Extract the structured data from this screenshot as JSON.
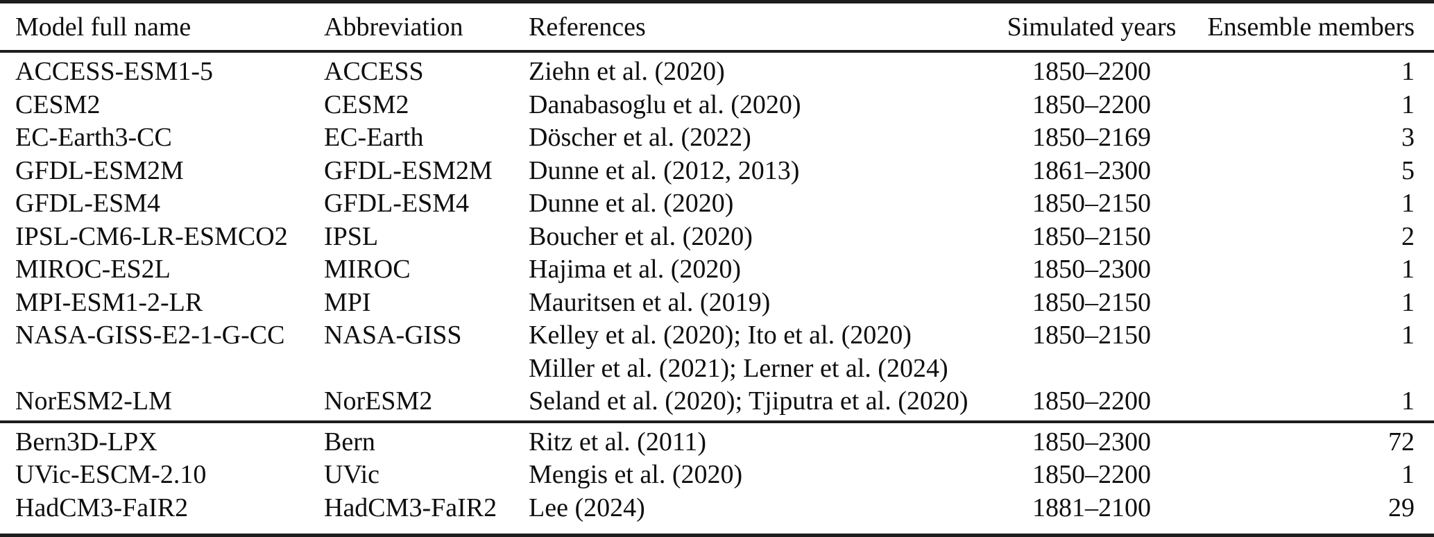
{
  "table": {
    "columns": [
      {
        "label": "Model full name",
        "align": "left"
      },
      {
        "label": "Abbreviation",
        "align": "left"
      },
      {
        "label": "References",
        "align": "left"
      },
      {
        "label": "Simulated years",
        "align": "center"
      },
      {
        "label": "Ensemble members",
        "align": "right"
      }
    ],
    "sections": [
      {
        "rows": [
          {
            "model": "ACCESS-ESM1-5",
            "abbr": "ACCESS",
            "refs": [
              "Ziehn et al. (2020)"
            ],
            "years": "1850–2200",
            "members": "1"
          },
          {
            "model": "CESM2",
            "abbr": "CESM2",
            "refs": [
              "Danabasoglu et al. (2020)"
            ],
            "years": "1850–2200",
            "members": "1"
          },
          {
            "model": "EC-Earth3-CC",
            "abbr": "EC-Earth",
            "refs": [
              "Döscher et al. (2022)"
            ],
            "years": "1850–2169",
            "members": "3"
          },
          {
            "model": "GFDL-ESM2M",
            "abbr": "GFDL-ESM2M",
            "refs": [
              "Dunne et al. (2012, 2013)"
            ],
            "years": "1861–2300",
            "members": "5"
          },
          {
            "model": "GFDL-ESM4",
            "abbr": "GFDL-ESM4",
            "refs": [
              "Dunne et al. (2020)"
            ],
            "years": "1850–2150",
            "members": "1"
          },
          {
            "model": "IPSL-CM6-LR-ESMCO2",
            "abbr": "IPSL",
            "refs": [
              "Boucher et al. (2020)"
            ],
            "years": "1850–2150",
            "members": "2"
          },
          {
            "model": "MIROC-ES2L",
            "abbr": "MIROC",
            "refs": [
              "Hajima et al. (2020)"
            ],
            "years": "1850–2300",
            "members": "1"
          },
          {
            "model": "MPI-ESM1-2-LR",
            "abbr": "MPI",
            "refs": [
              "Mauritsen et al. (2019)"
            ],
            "years": "1850–2150",
            "members": "1"
          },
          {
            "model": "NASA-GISS-E2-1-G-CC",
            "abbr": "NASA-GISS",
            "refs": [
              "Kelley et al. (2020); Ito et al. (2020)",
              "Miller et al. (2021); Lerner et al. (2024)"
            ],
            "years": "1850–2150",
            "members": "1"
          },
          {
            "model": "NorESM2-LM",
            "abbr": "NorESM2",
            "refs": [
              "Seland et al. (2020); Tjiputra et al. (2020)"
            ],
            "years": "1850–2200",
            "members": "1"
          }
        ]
      },
      {
        "rows": [
          {
            "model": "Bern3D-LPX",
            "abbr": "Bern",
            "refs": [
              "Ritz et al. (2011)"
            ],
            "years": "1850–2300",
            "members": "72"
          },
          {
            "model": "UVic-ESCM-2.10",
            "abbr": "UVic",
            "refs": [
              "Mengis et al. (2020)"
            ],
            "years": "1850–2200",
            "members": "1"
          },
          {
            "model": "HadCM3-FaIR2",
            "abbr": "HadCM3-FaIR2",
            "refs": [
              "Lee (2024)"
            ],
            "years": "1881–2100",
            "members": "29"
          }
        ]
      }
    ]
  }
}
